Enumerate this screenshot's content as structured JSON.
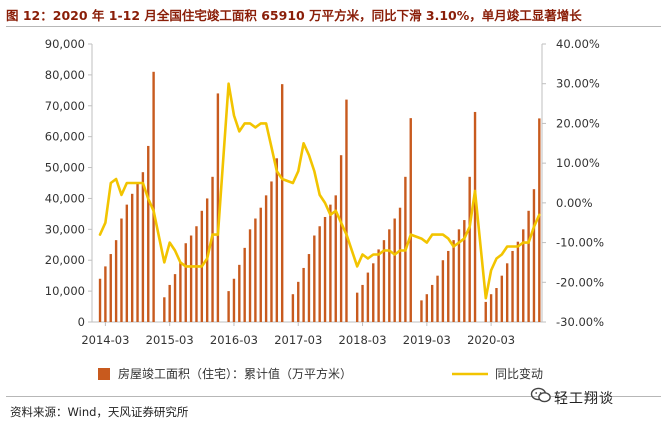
{
  "title": "图 12：2020 年 1-12 月全国住宅竣工面积 65910 万平方米，同比下滑 3.10%，单月竣工显著增长",
  "source": "资料来源：Wind，天风证券研究所",
  "watermark": "轻工翔谈",
  "colors": {
    "bar": "#c85a1e",
    "line": "#f2c400",
    "title": "#8a1e08"
  },
  "chart_data": {
    "type": "bar+line",
    "grid": false,
    "legend_position": "bottom",
    "x_ticks": [
      "2014-03",
      "2015-03",
      "2016-03",
      "2017-03",
      "2018-03",
      "2019-03",
      "2020-03"
    ],
    "y_left": {
      "range": [
        0,
        90000
      ],
      "ticks": [
        "0",
        "10,000",
        "20,000",
        "30,000",
        "40,000",
        "50,000",
        "60,000",
        "70,000",
        "80,000",
        "90,000"
      ]
    },
    "y_right": {
      "range": [
        -30,
        40
      ],
      "ticks": [
        "-30.00%",
        "-20.00%",
        "-10.00%",
        "0.00%",
        "10.00%",
        "20.00%",
        "30.00%",
        "40.00%"
      ]
    },
    "series": [
      {
        "name": "房屋竣工面积（住宅）：累计值（万平方米）",
        "type": "bar",
        "axis": "left",
        "x": [
          "2014-02",
          "2014-03",
          "2014-04",
          "2014-05",
          "2014-06",
          "2014-07",
          "2014-08",
          "2014-09",
          "2014-10",
          "2014-11",
          "2014-12",
          "2015-02",
          "2015-03",
          "2015-04",
          "2015-05",
          "2015-06",
          "2015-07",
          "2015-08",
          "2015-09",
          "2015-10",
          "2015-11",
          "2015-12",
          "2016-02",
          "2016-03",
          "2016-04",
          "2016-05",
          "2016-06",
          "2016-07",
          "2016-08",
          "2016-09",
          "2016-10",
          "2016-11",
          "2016-12",
          "2017-02",
          "2017-03",
          "2017-04",
          "2017-05",
          "2017-06",
          "2017-07",
          "2017-08",
          "2017-09",
          "2017-10",
          "2017-11",
          "2017-12",
          "2018-02",
          "2018-03",
          "2018-04",
          "2018-05",
          "2018-06",
          "2018-07",
          "2018-08",
          "2018-09",
          "2018-10",
          "2018-11",
          "2018-12",
          "2019-02",
          "2019-03",
          "2019-04",
          "2019-05",
          "2019-06",
          "2019-07",
          "2019-08",
          "2019-09",
          "2019-10",
          "2019-11",
          "2019-12",
          "2020-02",
          "2020-03",
          "2020-04",
          "2020-05",
          "2020-06",
          "2020-07",
          "2020-08",
          "2020-09",
          "2020-10",
          "2020-11",
          "2020-12"
        ],
        "values": [
          14000,
          18000,
          22000,
          26500,
          33500,
          38000,
          41500,
          45000,
          48500,
          57000,
          81000,
          8000,
          12000,
          15500,
          19500,
          25500,
          28000,
          31000,
          36000,
          40000,
          47000,
          74000,
          10000,
          14000,
          18500,
          24000,
          30000,
          33500,
          37000,
          41000,
          45500,
          53000,
          77000,
          9000,
          13000,
          17500,
          22000,
          28000,
          31000,
          34000,
          38000,
          41000,
          54000,
          72000,
          9500,
          12000,
          16000,
          19000,
          23500,
          26500,
          30000,
          33500,
          37000,
          47000,
          66000,
          7000,
          9000,
          12000,
          15000,
          20000,
          23000,
          26500,
          30000,
          33000,
          47000,
          68000,
          6500,
          9000,
          11000,
          15000,
          19000,
          23000,
          26000,
          30000,
          36000,
          43000,
          65910
        ]
      },
      {
        "name": "同比变动",
        "type": "line",
        "axis": "right",
        "x": [
          "2014-02",
          "2014-03",
          "2014-04",
          "2014-05",
          "2014-06",
          "2014-07",
          "2014-08",
          "2014-09",
          "2014-10",
          "2014-11",
          "2014-12",
          "2015-02",
          "2015-03",
          "2015-04",
          "2015-05",
          "2015-06",
          "2015-07",
          "2015-08",
          "2015-09",
          "2015-10",
          "2015-11",
          "2015-12",
          "2016-02",
          "2016-03",
          "2016-04",
          "2016-05",
          "2016-06",
          "2016-07",
          "2016-08",
          "2016-09",
          "2016-10",
          "2016-11",
          "2016-12",
          "2017-02",
          "2017-03",
          "2017-04",
          "2017-05",
          "2017-06",
          "2017-07",
          "2017-08",
          "2017-09",
          "2017-10",
          "2017-11",
          "2017-12",
          "2018-02",
          "2018-03",
          "2018-04",
          "2018-05",
          "2018-06",
          "2018-07",
          "2018-08",
          "2018-09",
          "2018-10",
          "2018-11",
          "2018-12",
          "2019-02",
          "2019-03",
          "2019-04",
          "2019-05",
          "2019-06",
          "2019-07",
          "2019-08",
          "2019-09",
          "2019-10",
          "2019-11",
          "2019-12",
          "2020-02",
          "2020-03",
          "2020-04",
          "2020-05",
          "2020-06",
          "2020-07",
          "2020-08",
          "2020-09",
          "2020-10",
          "2020-11",
          "2020-12"
        ],
        "values": [
          -8,
          -5,
          5,
          6,
          2,
          5,
          5,
          5,
          5,
          1,
          -2,
          -15,
          -10,
          -12,
          -15,
          -16,
          -16,
          -16,
          -16,
          -14,
          -8,
          -8,
          30,
          22,
          18,
          20,
          20,
          19,
          20,
          20,
          14,
          8,
          6,
          5,
          8,
          15,
          12,
          8,
          2,
          0,
          -3,
          -2,
          -5,
          -8,
          -16,
          -13,
          -14,
          -13,
          -13,
          -12,
          -12,
          -13,
          -12,
          -12,
          -8,
          -9,
          -10,
          -8,
          -8,
          -8,
          -9,
          -11,
          -10,
          -9,
          -6,
          3,
          -24,
          -17,
          -14,
          -13,
          -11,
          -11,
          -11,
          -10,
          -10,
          -6,
          -3
        ]
      }
    ]
  }
}
